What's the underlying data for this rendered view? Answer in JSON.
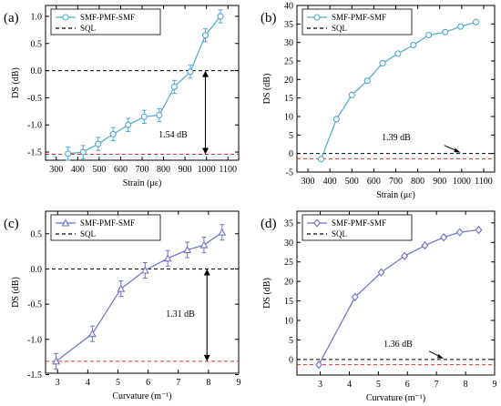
{
  "colors": {
    "series": "#4aa7cf",
    "series_diamond": "#6a72c9",
    "sql_black": "#000000",
    "sql_red": "#e0302a",
    "annotation": "#000000"
  },
  "legend": {
    "series_label": "SMF-PMF-SMF",
    "sql_label": "SQL"
  },
  "chart_data": [
    {
      "id": "a",
      "panel_label": "(a)",
      "type": "line",
      "marker": "circle",
      "xlabel": "Strain (με)",
      "ylabel": "DS (dB)",
      "xlim": [
        250,
        1150
      ],
      "ylim": [
        -1.65,
        1.2
      ],
      "xticks": [
        300,
        400,
        500,
        600,
        700,
        800,
        900,
        1000,
        1100
      ],
      "xtick_labels": [
        "300",
        "400",
        "500",
        "600",
        "700",
        "800",
        "900",
        "1000",
        "1100"
      ],
      "yticks": [
        -1.5,
        -1.0,
        -0.5,
        0.0,
        0.5,
        1.0
      ],
      "ytick_labels": [
        "-1.5",
        "-1.0",
        "-0.5",
        "0.0",
        "0.5",
        "1.0"
      ],
      "series": [
        {
          "name": "SMF-PMF-SMF",
          "x": [
            355,
            425,
            495,
            565,
            635,
            710,
            780,
            850,
            925,
            995,
            1065
          ],
          "y": [
            -1.53,
            -1.5,
            -1.35,
            -1.17,
            -1.0,
            -0.85,
            -0.82,
            -0.3,
            -0.02,
            0.65,
            1.0
          ],
          "err": [
            0.12,
            0.12,
            0.12,
            0.12,
            0.12,
            0.12,
            0.12,
            0.12,
            0.12,
            0.12,
            0.12
          ]
        }
      ],
      "reference_lines": [
        {
          "name": "SQL",
          "y": 0.0,
          "color": "#000000"
        },
        {
          "y": -1.54,
          "color": "#e0302a"
        }
      ],
      "annotation": {
        "text": "1.54 dB",
        "arrow_x": 995,
        "y_from": 0.0,
        "y_to": -1.54
      },
      "legend_position": "top-left"
    },
    {
      "id": "b",
      "panel_label": "(b)",
      "type": "line",
      "marker": "circle",
      "xlabel": "Strain (με)",
      "ylabel": "DS (dB)",
      "xlim": [
        250,
        1150
      ],
      "ylim": [
        -5,
        40
      ],
      "xticks": [
        300,
        400,
        500,
        600,
        700,
        800,
        900,
        1000,
        1100
      ],
      "xtick_labels": [
        "300",
        "400",
        "500",
        "600",
        "700",
        "800",
        "900",
        "1000",
        "1100"
      ],
      "yticks": [
        -5,
        0,
        5,
        10,
        15,
        20,
        25,
        30,
        35,
        40
      ],
      "ytick_labels": [
        "-5",
        "0",
        "5",
        "10",
        "15",
        "20",
        "25",
        "30",
        "35",
        "40"
      ],
      "series": [
        {
          "name": "SMF-PMF-SMF",
          "x": [
            360,
            430,
            500,
            570,
            640,
            710,
            780,
            850,
            925,
            995,
            1065
          ],
          "y": [
            -1.5,
            9.3,
            15.8,
            19.7,
            24.4,
            27.0,
            29.3,
            32.0,
            32.8,
            34.3,
            35.5
          ]
        }
      ],
      "reference_lines": [
        {
          "name": "SQL",
          "y": 0.0,
          "color": "#000000"
        },
        {
          "y": -1.39,
          "color": "#e0302a"
        }
      ],
      "annotation": {
        "text": "1.39 dB",
        "arrow_x": 995
      },
      "legend_position": "top-left"
    },
    {
      "id": "c",
      "panel_label": "(c)",
      "type": "line",
      "marker": "triangle",
      "xlabel": "Curvature (m⁻¹)",
      "ylabel": "DS (dB)",
      "xlim": [
        2.6,
        9
      ],
      "ylim": [
        -1.48,
        0.82
      ],
      "xticks": [
        3,
        4,
        5,
        6,
        7,
        8,
        9
      ],
      "xtick_labels": [
        "3",
        "4",
        "5",
        "6",
        "7",
        "8",
        "9"
      ],
      "yticks": [
        -1.5,
        -1.0,
        -0.5,
        0.0,
        0.5
      ],
      "ytick_labels": [
        "-1.5",
        "-1.0",
        "-0.5",
        "0.0",
        "0.5"
      ],
      "series": [
        {
          "name": "SMF-PMF-SMF",
          "x": [
            2.95,
            4.15,
            5.1,
            5.9,
            6.65,
            7.3,
            7.85,
            8.45
          ],
          "y": [
            -1.31,
            -0.92,
            -0.28,
            -0.02,
            0.15,
            0.27,
            0.34,
            0.52
          ],
          "err": [
            0.11,
            0.11,
            0.11,
            0.11,
            0.11,
            0.11,
            0.11,
            0.11
          ]
        }
      ],
      "reference_lines": [
        {
          "name": "SQL",
          "y": 0.0,
          "color": "#000000"
        },
        {
          "y": -1.31,
          "color": "#e0302a"
        }
      ],
      "annotation": {
        "text": "1.31 dB",
        "arrow_x": 7.95,
        "y_from": 0.0,
        "y_to": -1.31
      },
      "legend_position": "top-left"
    },
    {
      "id": "d",
      "panel_label": "(d)",
      "type": "line",
      "marker": "diamond",
      "xlabel": "Curvature (m⁻¹)",
      "ylabel": "DS (dB)",
      "xlim": [
        2.2,
        9
      ],
      "ylim": [
        -4,
        38
      ],
      "xticks": [
        3,
        4,
        5,
        6,
        7,
        8,
        9
      ],
      "xtick_labels": [
        "3",
        "4",
        "5",
        "6",
        "7",
        "8",
        "9"
      ],
      "yticks": [
        0,
        5,
        10,
        15,
        20,
        25,
        30,
        35
      ],
      "ytick_labels": [
        "0",
        "5",
        "10",
        "15",
        "20",
        "25",
        "30",
        "35"
      ],
      "series": [
        {
          "name": "SMF-PMF-SMF",
          "x": [
            2.95,
            4.2,
            5.1,
            5.9,
            6.6,
            7.25,
            7.8,
            8.45
          ],
          "y": [
            -1.36,
            16.0,
            22.3,
            26.5,
            29.2,
            31.3,
            32.6,
            33.2
          ]
        }
      ],
      "reference_lines": [
        {
          "name": "SQL",
          "y": 0.0,
          "color": "#000000"
        },
        {
          "y": -1.36,
          "color": "#e0302a"
        }
      ],
      "annotation": {
        "text": "1.36 dB",
        "arrow_x": 7.25
      },
      "legend_position": "top-left"
    }
  ]
}
